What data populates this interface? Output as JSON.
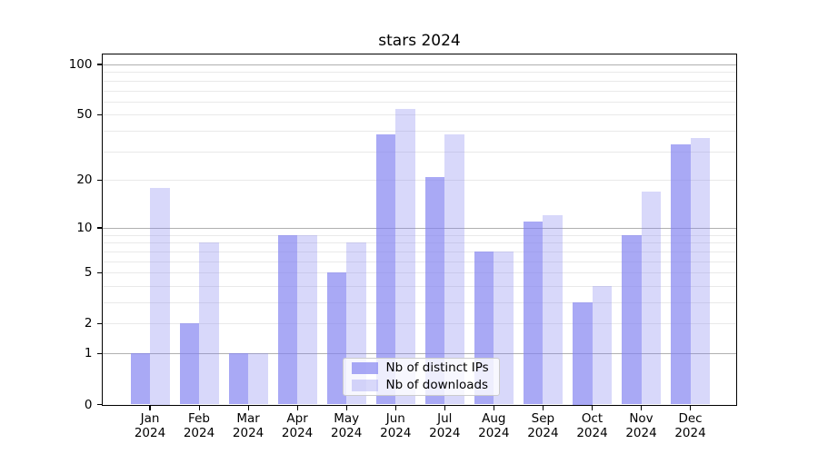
{
  "title": "stars 2024",
  "chart_data": {
    "type": "bar",
    "title": "stars 2024",
    "xlabel": "",
    "ylabel": "",
    "yscale": "log1p",
    "grid": true,
    "yticks": [
      0,
      1,
      2,
      5,
      10,
      20,
      50,
      100
    ],
    "minor_gridlines": [
      2,
      3,
      4,
      5,
      6,
      7,
      8,
      9,
      20,
      30,
      40,
      50,
      60,
      70,
      80,
      90
    ],
    "major_gridlines": [
      1,
      10,
      100
    ],
    "ylim": [
      0,
      115
    ],
    "categories": [
      "Jan 2024",
      "Feb 2024",
      "Mar 2024",
      "Apr 2024",
      "May 2024",
      "Jun 2024",
      "Jul 2024",
      "Aug 2024",
      "Sep 2024",
      "Oct 2024",
      "Nov 2024",
      "Dec 2024"
    ],
    "series": [
      {
        "name": "Nb of distinct IPs",
        "color": "rgba(128,128,240,0.68)",
        "values": [
          1,
          2,
          1,
          9,
          5,
          38,
          21,
          7,
          11,
          3,
          9,
          33
        ]
      },
      {
        "name": "Nb of downloads",
        "color": "rgba(128,128,240,0.31)",
        "values": [
          18,
          8,
          1,
          9,
          8,
          54,
          38,
          7,
          12,
          4,
          17,
          36
        ]
      }
    ],
    "legend_position": "lower center"
  },
  "colors": {
    "bar_dark": "#a9a9f5",
    "bar_light": "#d9d9f8",
    "major_grid": "#b0b0b0",
    "minor_grid": "#e9e9e9",
    "spine": "#000000",
    "legend_border": "#cccccc",
    "background": "#ffffff"
  }
}
